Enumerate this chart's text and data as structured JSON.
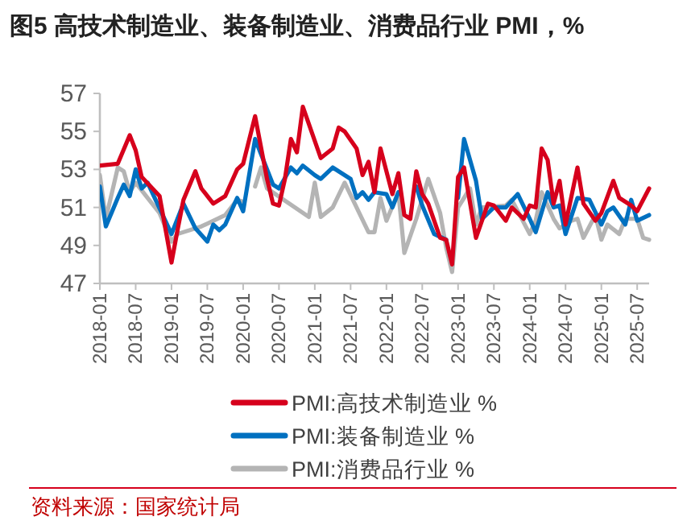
{
  "chart_data": {
    "type": "line",
    "title": "图5  高技术制造业、装备制造业、消费品行业 PMI，%",
    "annotations": [
      "资料来源：国家统计局"
    ],
    "xlim": [
      "2018-01",
      "2025-09"
    ],
    "xticks": [
      "2018-01",
      "2018-07",
      "2019-01",
      "2019-07",
      "2020-01",
      "2020-07",
      "2021-01",
      "2021-07",
      "2022-01",
      "2022-07",
      "2023-01",
      "2023-07",
      "2024-01",
      "2024-07",
      "2025-01",
      "2025-07"
    ],
    "ylim": [
      47,
      57
    ],
    "yticks": [
      47,
      49,
      51,
      53,
      55,
      57
    ],
    "grid": false,
    "legend": "bottom",
    "series": [
      {
        "name": "PMI:高技术制造业 %",
        "color": "#d6001c",
        "x": [
          "2018-01",
          "2018-04",
          "2018-06",
          "2018-07",
          "2018-08",
          "2018-11",
          "2019-01",
          "2019-02",
          "2019-03",
          "2019-05",
          "2019-06",
          "2019-08",
          "2019-10",
          "2019-12",
          "2020-01",
          "2020-03",
          "2020-05",
          "2020-06",
          "2020-07",
          "2020-08",
          "2020-09",
          "2020-10",
          "2020-11",
          "2021-02",
          "2021-04",
          "2021-05",
          "2021-06",
          "2021-08",
          "2021-09",
          "2021-10",
          "2021-11",
          "2021-12",
          "2022-02",
          "2022-03",
          "2022-04",
          "2022-05",
          "2022-06",
          "2022-07",
          "2022-08",
          "2022-10",
          "2022-11",
          "2022-12",
          "2023-01",
          "2023-02",
          "2023-04",
          "2023-06",
          "2023-07",
          "2023-09",
          "2023-10",
          "2023-12",
          "2024-01",
          "2024-02",
          "2024-03",
          "2024-04",
          "2024-05",
          "2024-06",
          "2024-07",
          "2024-09",
          "2024-10",
          "2024-12",
          "2025-01",
          "2025-03",
          "2025-04",
          "2025-06",
          "2025-07",
          "2025-09"
        ],
        "values": [
          53.2,
          53.3,
          54.8,
          54.0,
          52.6,
          51.6,
          48.1,
          49.8,
          51.4,
          52.9,
          52.0,
          51.2,
          51.6,
          53.0,
          53.3,
          55.8,
          52.5,
          51.2,
          51.1,
          52.5,
          54.6,
          53.9,
          56.3,
          53.6,
          54.1,
          55.2,
          55.0,
          54.1,
          52.7,
          53.4,
          51.8,
          54.1,
          51.7,
          52.8,
          50.6,
          50.4,
          52.9,
          51.7,
          51.2,
          49.4,
          49.3,
          48.0,
          52.6,
          53.1,
          49.4,
          51.2,
          51.1,
          50.3,
          51.0,
          50.4,
          51.1,
          51.0,
          54.1,
          53.5,
          51.2,
          52.4,
          50.1,
          53.1,
          51.2,
          50.3,
          50.7,
          52.4,
          51.5,
          51.1,
          50.8,
          52.0
        ]
      },
      {
        "name": "PMI:装备制造业 %",
        "color": "#0070c0",
        "x": [
          "2018-01",
          "2018-02",
          "2018-04",
          "2018-05",
          "2018-06",
          "2018-07",
          "2018-08",
          "2018-09",
          "2019-01",
          "2019-03",
          "2019-05",
          "2019-07",
          "2019-08",
          "2019-09",
          "2019-10",
          "2019-12",
          "2020-01",
          "2020-03",
          "2020-04",
          "2020-06",
          "2020-07",
          "2020-09",
          "2020-10",
          "2020-11",
          "2021-01",
          "2021-02",
          "2021-04",
          "2021-07",
          "2021-08",
          "2021-09",
          "2021-10",
          "2021-11",
          "2022-01",
          "2022-02",
          "2022-03",
          "2022-04",
          "2022-06",
          "2022-07",
          "2022-09",
          "2022-11",
          "2022-12",
          "2023-01",
          "2023-02",
          "2023-04",
          "2023-05",
          "2023-07",
          "2023-09",
          "2023-11",
          "2024-01",
          "2024-02",
          "2024-04",
          "2024-05",
          "2024-06",
          "2024-07",
          "2024-09",
          "2024-11",
          "2025-01",
          "2025-02",
          "2025-03",
          "2025-05",
          "2025-06",
          "2025-07",
          "2025-09"
        ],
        "values": [
          52.1,
          50.0,
          51.5,
          52.2,
          51.6,
          53.0,
          52.0,
          52.3,
          49.6,
          51.2,
          49.9,
          49.2,
          50.1,
          49.8,
          50.1,
          51.5,
          50.8,
          54.6,
          53.8,
          52.2,
          52.0,
          53.1,
          52.8,
          53.2,
          52.7,
          52.5,
          53.1,
          52.5,
          51.5,
          51.8,
          51.4,
          51.8,
          51.7,
          51.0,
          51.8,
          null,
          52.1,
          51.1,
          49.6,
          49.3,
          null,
          51.5,
          54.6,
          52.4,
          50.4,
          51.0,
          51.0,
          51.7,
          50.4,
          49.7,
          51.8,
          51.0,
          51.1,
          49.6,
          51.5,
          51.4,
          50.1,
          50.8,
          51.0,
          50.1,
          51.4,
          50.3,
          50.6
        ]
      },
      {
        "name": "PMI:消费品行业 %",
        "color": "#b4b4b4",
        "x": [
          "2018-01",
          "2018-02",
          "2018-04",
          "2018-05",
          "2018-06",
          "2018-07",
          "2018-09",
          "2018-11",
          "2019-01",
          "2019-02",
          "2019-06",
          "2019-10",
          "2019-12",
          "2020-01",
          "2020-02",
          "2020-03",
          "2020-04",
          "2020-05",
          "2020-12",
          "2021-01",
          "2021-02",
          "2021-04",
          "2021-06",
          "2021-08",
          "2021-10",
          "2021-11",
          "2021-12",
          "2022-01",
          "2022-03",
          "2022-04",
          "2022-06",
          "2022-08",
          "2022-10",
          "2022-11",
          "2022-12",
          "2023-01",
          "2023-03",
          "2023-04",
          "2023-05",
          "2023-09",
          "2023-10",
          "2024-01",
          "2024-02",
          "2024-03",
          "2024-05",
          "2024-06",
          "2024-08",
          "2024-09",
          "2024-10",
          "2024-12",
          "2025-01",
          "2025-02",
          "2025-04",
          "2025-05",
          "2025-07",
          "2025-08",
          "2025-09"
        ],
        "values": [
          52.7,
          50.4,
          53.1,
          52.9,
          51.8,
          52.3,
          51.5,
          50.7,
          49.2,
          49.6,
          50.0,
          50.6,
          51.4,
          51.3,
          null,
          52.1,
          53.1,
          52.0,
          50.5,
          52.3,
          50.5,
          51.0,
          52.3,
          51.0,
          49.7,
          49.7,
          51.5,
          50.3,
          51.8,
          48.6,
          50.4,
          52.5,
          50.7,
          48.9,
          47.6,
          51.0,
          52.0,
          50.1,
          51.0,
          51.1,
          51.4,
          49.6,
          50.3,
          51.8,
          50.4,
          49.9,
          50.3,
          50.4,
          49.4,
          50.6,
          49.3,
          50.1,
          49.6,
          50.4,
          50.4,
          49.4,
          49.3
        ]
      }
    ]
  }
}
